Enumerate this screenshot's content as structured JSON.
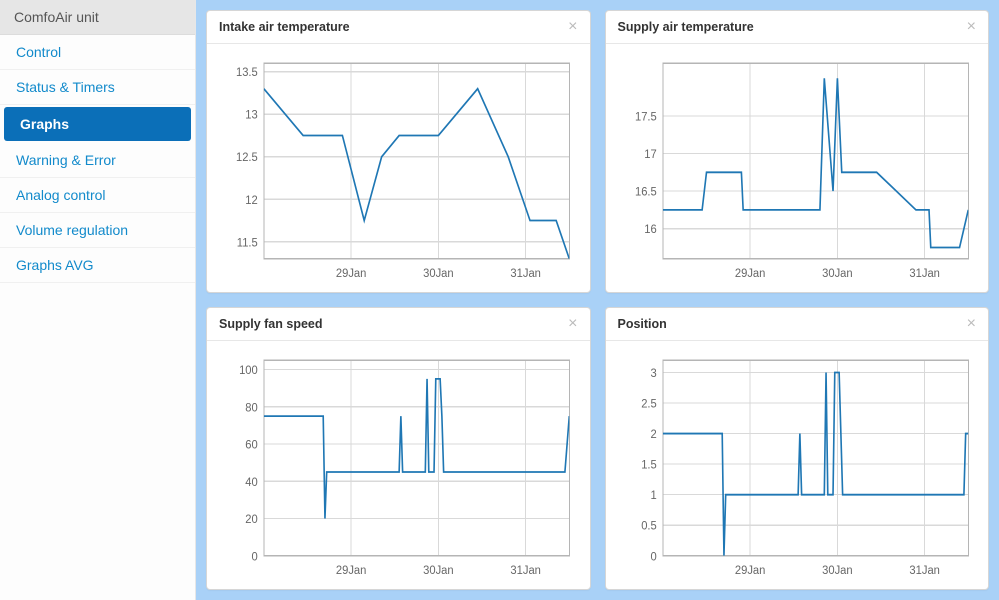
{
  "sidebar": {
    "title": "ComfoAir unit",
    "items": [
      {
        "label": "Control",
        "active": false
      },
      {
        "label": "Status & Timers",
        "active": false
      },
      {
        "label": "Graphs",
        "active": true
      },
      {
        "label": "Warning & Error",
        "active": false
      },
      {
        "label": "Analog control",
        "active": false
      },
      {
        "label": "Volume regulation",
        "active": false
      },
      {
        "label": "Graphs AVG",
        "active": false
      }
    ]
  },
  "colors": {
    "page_bg": "#a9d1f7",
    "panel_bg": "#ffffff",
    "grid": "#d9d9d9",
    "axis": "#b5b5b5",
    "series": "#1f77b4",
    "tick_text": "#666666",
    "link": "#128acb",
    "active_nav_bg": "#0b6fb8"
  },
  "charts": [
    {
      "id": "intake-temp",
      "title": "Intake air temperature",
      "type": "line",
      "x_domain": [
        0,
        3.5
      ],
      "x_ticks": [
        {
          "v": 1,
          "label": "29Jan"
        },
        {
          "v": 2,
          "label": "30Jan"
        },
        {
          "v": 3,
          "label": "31Jan"
        }
      ],
      "y_domain": [
        11.3,
        13.6
      ],
      "y_ticks": [
        {
          "v": 11.5,
          "label": "11.5"
        },
        {
          "v": 12,
          "label": "12"
        },
        {
          "v": 12.5,
          "label": "12.5"
        },
        {
          "v": 13,
          "label": "13"
        },
        {
          "v": 13.5,
          "label": "13.5"
        }
      ],
      "series_color": "#1f77b4",
      "data": [
        [
          0.0,
          13.3
        ],
        [
          0.45,
          12.75
        ],
        [
          0.9,
          12.75
        ],
        [
          1.15,
          11.75
        ],
        [
          1.35,
          12.5
        ],
        [
          1.55,
          12.75
        ],
        [
          2.0,
          12.75
        ],
        [
          2.45,
          13.3
        ],
        [
          2.8,
          12.5
        ],
        [
          3.05,
          11.75
        ],
        [
          3.25,
          11.75
        ],
        [
          3.35,
          11.75
        ],
        [
          3.5,
          11.3
        ]
      ]
    },
    {
      "id": "supply-temp",
      "title": "Supply air temperature",
      "type": "line",
      "x_domain": [
        0,
        3.5
      ],
      "x_ticks": [
        {
          "v": 1,
          "label": "29Jan"
        },
        {
          "v": 2,
          "label": "30Jan"
        },
        {
          "v": 3,
          "label": "31Jan"
        }
      ],
      "y_domain": [
        15.6,
        18.2
      ],
      "y_ticks": [
        {
          "v": 16,
          "label": "16"
        },
        {
          "v": 16.5,
          "label": "16.5"
        },
        {
          "v": 17,
          "label": "17"
        },
        {
          "v": 17.5,
          "label": "17.5"
        }
      ],
      "series_color": "#1f77b4",
      "data": [
        [
          0.0,
          16.25
        ],
        [
          0.45,
          16.25
        ],
        [
          0.5,
          16.75
        ],
        [
          0.9,
          16.75
        ],
        [
          0.92,
          16.25
        ],
        [
          1.8,
          16.25
        ],
        [
          1.85,
          18.0
        ],
        [
          1.95,
          16.5
        ],
        [
          2.0,
          18.0
        ],
        [
          2.05,
          16.75
        ],
        [
          2.45,
          16.75
        ],
        [
          2.9,
          16.25
        ],
        [
          3.05,
          16.25
        ],
        [
          3.07,
          15.75
        ],
        [
          3.4,
          15.75
        ],
        [
          3.5,
          16.25
        ]
      ]
    },
    {
      "id": "supply-fan",
      "title": "Supply fan speed",
      "type": "line",
      "x_domain": [
        0,
        3.5
      ],
      "x_ticks": [
        {
          "v": 1,
          "label": "29Jan"
        },
        {
          "v": 2,
          "label": "30Jan"
        },
        {
          "v": 3,
          "label": "31Jan"
        }
      ],
      "y_domain": [
        0,
        105
      ],
      "y_ticks": [
        {
          "v": 0,
          "label": "0"
        },
        {
          "v": 20,
          "label": "20"
        },
        {
          "v": 40,
          "label": "40"
        },
        {
          "v": 60,
          "label": "60"
        },
        {
          "v": 80,
          "label": "80"
        },
        {
          "v": 100,
          "label": "100"
        }
      ],
      "series_color": "#1f77b4",
      "data": [
        [
          0.0,
          75
        ],
        [
          0.68,
          75
        ],
        [
          0.7,
          20
        ],
        [
          0.72,
          45
        ],
        [
          1.55,
          45
        ],
        [
          1.57,
          75
        ],
        [
          1.59,
          45
        ],
        [
          1.85,
          45
        ],
        [
          1.87,
          95
        ],
        [
          1.89,
          45
        ],
        [
          1.95,
          45
        ],
        [
          1.97,
          95
        ],
        [
          2.02,
          95
        ],
        [
          2.04,
          75
        ],
        [
          2.06,
          45
        ],
        [
          3.45,
          45
        ],
        [
          3.5,
          75
        ]
      ]
    },
    {
      "id": "position",
      "title": "Position",
      "type": "line",
      "x_domain": [
        0,
        3.5
      ],
      "x_ticks": [
        {
          "v": 1,
          "label": "29Jan"
        },
        {
          "v": 2,
          "label": "30Jan"
        },
        {
          "v": 3,
          "label": "31Jan"
        }
      ],
      "y_domain": [
        0,
        3.2
      ],
      "y_ticks": [
        {
          "v": 0,
          "label": "0"
        },
        {
          "v": 0.5,
          "label": "0.5"
        },
        {
          "v": 1,
          "label": "1"
        },
        {
          "v": 1.5,
          "label": "1.5"
        },
        {
          "v": 2,
          "label": "2"
        },
        {
          "v": 2.5,
          "label": "2.5"
        },
        {
          "v": 3,
          "label": "3"
        }
      ],
      "series_color": "#1f77b4",
      "data": [
        [
          0.0,
          2
        ],
        [
          0.68,
          2
        ],
        [
          0.7,
          0
        ],
        [
          0.72,
          1
        ],
        [
          1.55,
          1
        ],
        [
          1.57,
          2
        ],
        [
          1.59,
          1
        ],
        [
          1.85,
          1
        ],
        [
          1.87,
          3
        ],
        [
          1.89,
          1
        ],
        [
          1.95,
          1
        ],
        [
          1.97,
          3
        ],
        [
          2.02,
          3
        ],
        [
          2.04,
          2
        ],
        [
          2.06,
          1
        ],
        [
          3.45,
          1
        ],
        [
          3.47,
          2
        ],
        [
          3.5,
          2
        ]
      ]
    }
  ]
}
